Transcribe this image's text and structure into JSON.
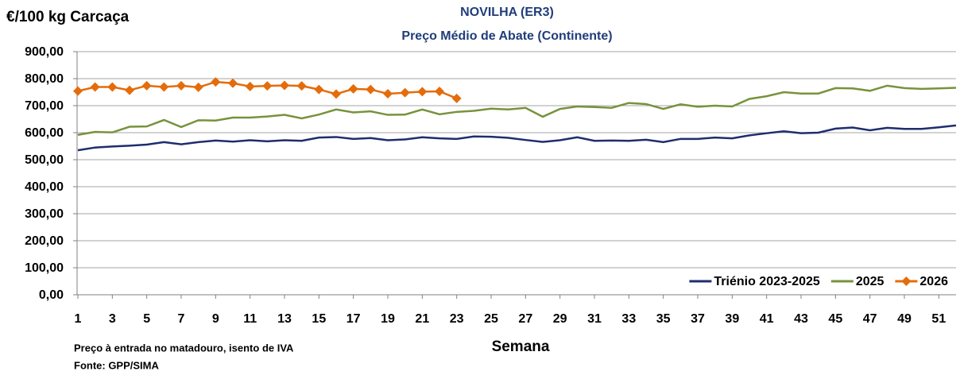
{
  "chart_data": {
    "type": "line",
    "title": "NOVILHA (ER3)",
    "subtitle": "Preço Médio de Abate (Continente)",
    "y_label": "€/100 kg Carcaça",
    "x_label": "Semana",
    "notes": [
      "Preço à entrada no matadouro, isento de IVA",
      "Fonte: GPP/SIMA"
    ],
    "x": [
      1,
      2,
      3,
      4,
      5,
      6,
      7,
      8,
      9,
      10,
      11,
      12,
      13,
      14,
      15,
      16,
      17,
      18,
      19,
      20,
      21,
      22,
      23,
      24,
      25,
      26,
      27,
      28,
      29,
      30,
      31,
      32,
      33,
      34,
      35,
      36,
      37,
      38,
      39,
      40,
      41,
      42,
      43,
      44,
      45,
      46,
      47,
      48,
      49,
      50,
      51,
      52
    ],
    "xlim": [
      1,
      52
    ],
    "xticks": [
      1,
      3,
      5,
      7,
      9,
      11,
      13,
      15,
      17,
      19,
      21,
      23,
      25,
      27,
      29,
      31,
      33,
      35,
      37,
      39,
      41,
      43,
      45,
      47,
      49,
      51
    ],
    "ylim": [
      0,
      900
    ],
    "yticks": [
      {
        "value": 0,
        "label": "0,00"
      },
      {
        "value": 100,
        "label": "100,00"
      },
      {
        "value": 200,
        "label": "200,00"
      },
      {
        "value": 300,
        "label": "300,00"
      },
      {
        "value": 400,
        "label": "400,00"
      },
      {
        "value": 500,
        "label": "500,00"
      },
      {
        "value": 600,
        "label": "600,00"
      },
      {
        "value": 700,
        "label": "700,00"
      },
      {
        "value": 800,
        "label": "800,00"
      },
      {
        "value": 900,
        "label": "900,00"
      }
    ],
    "grid": true,
    "legend": "bottom-right",
    "series": [
      {
        "name": "Triénio 2023-2025",
        "color": "#1f2d6e",
        "marker": false,
        "values": [
          535,
          545,
          549,
          552,
          556,
          565,
          557,
          565,
          571,
          567,
          572,
          568,
          572,
          570,
          582,
          584,
          577,
          580,
          572,
          575,
          583,
          579,
          577,
          586,
          585,
          581,
          573,
          566,
          572,
          583,
          570,
          571,
          570,
          574,
          565,
          577,
          577,
          582,
          579,
          590,
          598,
          605,
          598,
          600,
          615,
          619,
          609,
          618,
          614,
          614,
          620,
          627
        ]
      },
      {
        "name": "2025",
        "color": "#77933c",
        "marker": false,
        "values": [
          592,
          603,
          601,
          622,
          623,
          647,
          621,
          646,
          645,
          656,
          656,
          660,
          666,
          653,
          667,
          686,
          675,
          679,
          666,
          667,
          686,
          668,
          677,
          681,
          689,
          686,
          692,
          659,
          688,
          697,
          695,
          692,
          710,
          706,
          688,
          705,
          696,
          700,
          697,
          725,
          735,
          750,
          745,
          745,
          765,
          764,
          755,
          774,
          765,
          762,
          764,
          766
        ]
      },
      {
        "name": "2026",
        "color": "#e46c0a",
        "marker": true,
        "values": [
          754,
          769,
          769,
          757,
          774,
          769,
          774,
          768,
          788,
          783,
          771,
          773,
          775,
          773,
          760,
          743,
          762,
          760,
          744,
          748,
          752,
          753,
          727,
          null,
          null,
          null,
          null,
          null,
          null,
          null,
          null,
          null,
          null,
          null,
          null,
          null,
          null,
          null,
          null,
          null,
          null,
          null,
          null,
          null,
          null,
          null,
          null,
          null,
          null,
          null,
          null,
          null
        ]
      }
    ]
  }
}
